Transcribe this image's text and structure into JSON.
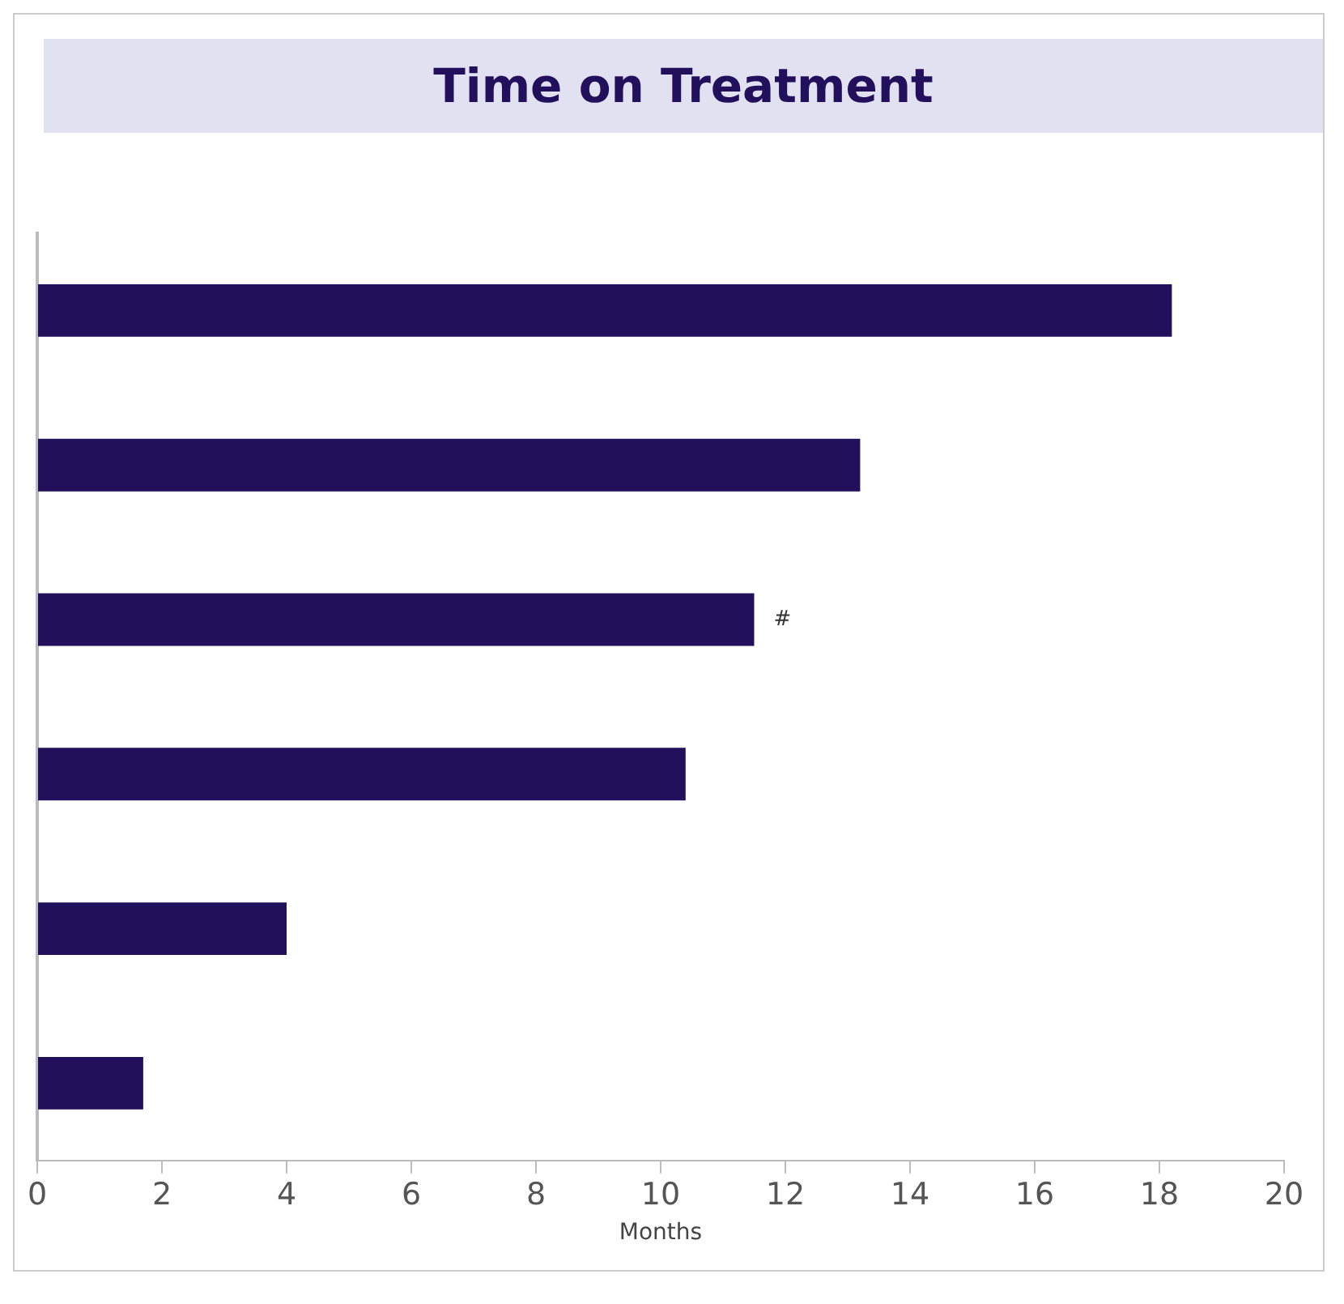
{
  "chart_data": {
    "type": "bar",
    "orientation": "horizontal",
    "title": "Time on Treatment",
    "xlabel": "Months",
    "categories": [
      null,
      null,
      null,
      null,
      null,
      null
    ],
    "values": [
      18.2,
      13.2,
      11.5,
      10.4,
      4.0,
      1.7
    ],
    "color": "#22105c",
    "xlim": [
      0,
      20
    ],
    "xticks": [
      0,
      2,
      4,
      6,
      8,
      10,
      12,
      14,
      16,
      18,
      20
    ],
    "grid": false,
    "legend": false,
    "annotations": [
      {
        "text": "#",
        "x": 11.5
      }
    ]
  }
}
